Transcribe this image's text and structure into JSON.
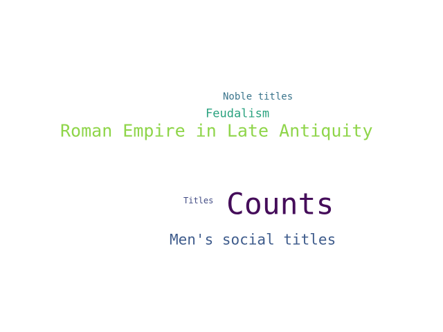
{
  "word_cloud": {
    "words": [
      {
        "text": "Noble titles",
        "color": "#3b758c"
      },
      {
        "text": "Feudalism",
        "color": "#2aa27f"
      },
      {
        "text": "Roman Empire in Late Antiquity",
        "color": "#8fd54a"
      },
      {
        "text": "Titles",
        "color": "#414b84"
      },
      {
        "text": "Counts",
        "color": "#450d5a"
      },
      {
        "text": "Men's social titles",
        "color": "#3f5c8c"
      }
    ]
  }
}
